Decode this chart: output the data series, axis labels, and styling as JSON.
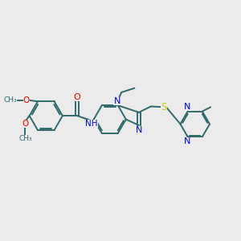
{
  "background_color": "#ebebeb",
  "bond_color": "#2d6b6b",
  "nitrogen_color": "#0000ee",
  "oxygen_color": "#ee0000",
  "sulfur_color": "#cccc00",
  "figsize": [
    3.0,
    3.0
  ],
  "dpi": 100,
  "xlim": [
    0,
    10
  ],
  "ylim": [
    0,
    10
  ]
}
